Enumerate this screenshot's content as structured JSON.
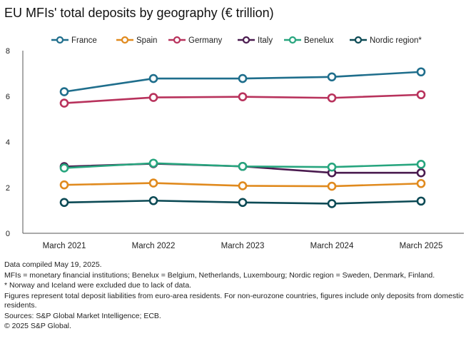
{
  "title": "EU MFIs' total deposits by geography (€ trillion)",
  "chart_data": {
    "type": "line",
    "categories": [
      "March 2021",
      "March 2022",
      "March 2023",
      "March 2024",
      "March 2025"
    ],
    "ylim": [
      0,
      8
    ],
    "yticks": [
      "0",
      "2",
      "4",
      "6",
      "8"
    ],
    "grid": false,
    "legend_position": "top",
    "series": [
      {
        "name": "France",
        "color": "#1f6e8c",
        "values": [
          6.2,
          6.78,
          6.78,
          6.85,
          7.07
        ]
      },
      {
        "name": "Spain",
        "color": "#e08a1e",
        "values": [
          2.12,
          2.2,
          2.08,
          2.06,
          2.18
        ]
      },
      {
        "name": "Germany",
        "color": "#b8325c",
        "values": [
          5.7,
          5.95,
          5.98,
          5.93,
          6.07
        ]
      },
      {
        "name": "Italy",
        "color": "#4a1b4f",
        "values": [
          2.92,
          3.05,
          2.93,
          2.65,
          2.65
        ]
      },
      {
        "name": "Benelux",
        "color": "#27a57e",
        "values": [
          2.86,
          3.07,
          2.93,
          2.9,
          3.02
        ]
      },
      {
        "name": "Nordic region*",
        "color": "#0c4a55",
        "values": [
          1.35,
          1.43,
          1.35,
          1.3,
          1.41
        ]
      }
    ]
  },
  "notes": {
    "compiled": "Data compiled May 19, 2025.",
    "definitions": "MFIs = monetary financial institutions; Benelux = Belgium, Netherlands, Luxembourg; Nordic region = Sweden, Denmark, Finland.",
    "exclusion": "* Norway and Iceland were excluded due to lack of data.",
    "figures": "Figures represent total deposit liabilities from euro-area residents. For non-eurozone countries, figures include only deposits from domestic residents.",
    "sources": "Sources: S&P Global Market Intelligence; ECB.",
    "copyright": "© 2025 S&P Global."
  }
}
